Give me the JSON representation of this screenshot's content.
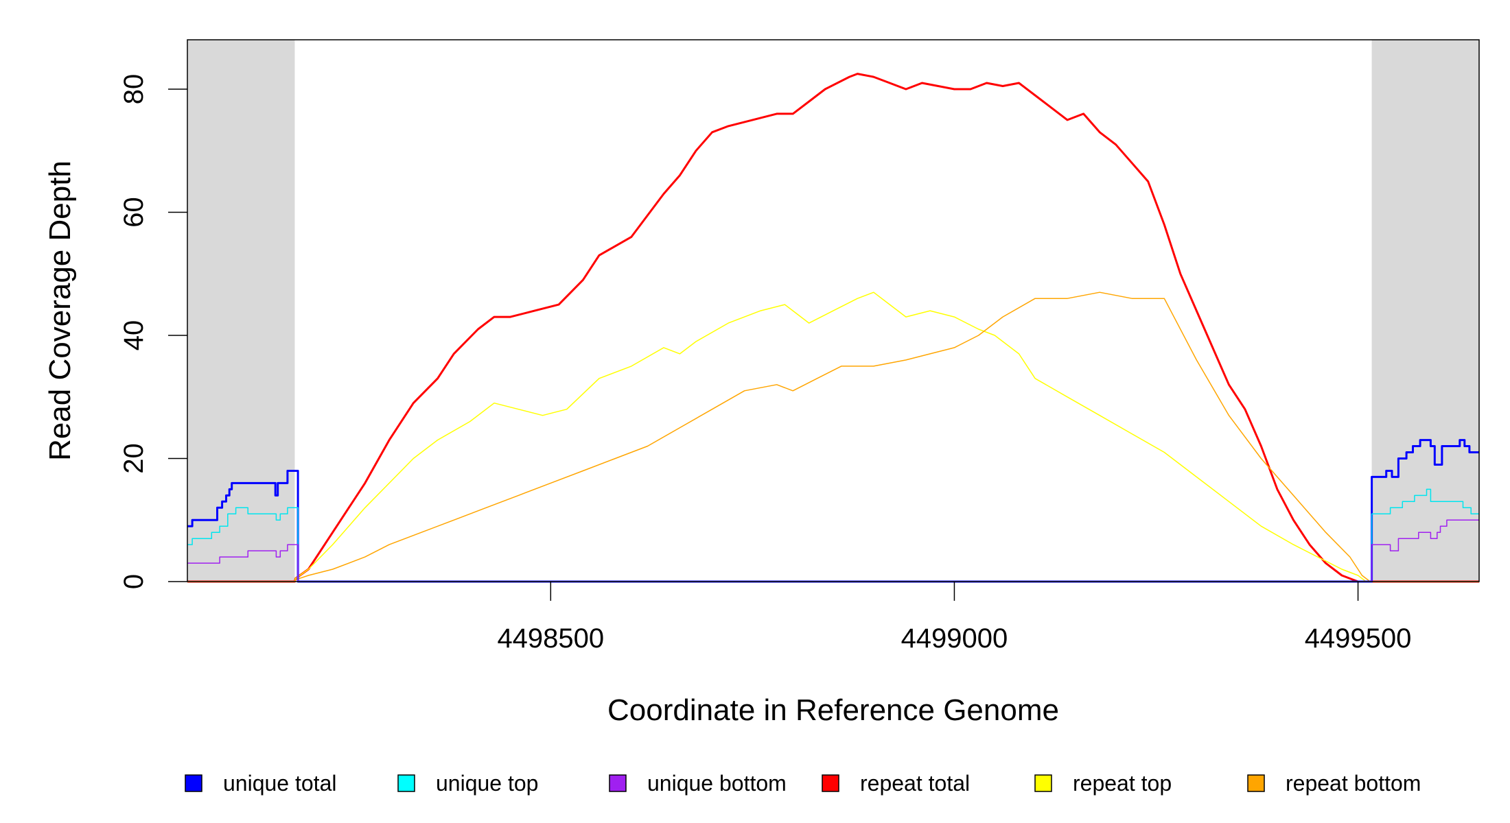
{
  "chart_data": {
    "type": "line",
    "title": "",
    "xlabel": "Coordinate in Reference Genome",
    "ylabel": "Read Coverage Depth",
    "xlim": [
      4498050,
      4499650
    ],
    "ylim": [
      0,
      88
    ],
    "x_ticks": [
      4498500,
      4499000,
      4499500
    ],
    "x_tick_labels": [
      "4498500",
      "4499000",
      "4499500"
    ],
    "y_ticks": [
      0,
      20,
      40,
      60,
      80
    ],
    "y_tick_labels": [
      "0",
      "20",
      "40",
      "60",
      "80"
    ],
    "grid": false,
    "shaded_regions": [
      {
        "x_start": 4498050,
        "x_end": 4498183,
        "color": "#d9d9d9"
      },
      {
        "x_start": 4499517,
        "x_end": 4499650,
        "color": "#d9d9d9"
      }
    ],
    "legend_position": "bottom",
    "series": [
      {
        "name": "unique total",
        "color": "#0000ff",
        "step": true,
        "x": [
          4498050,
          4498056,
          4498087,
          4498093,
          4498098,
          4498102,
          4498105,
          4498110,
          4498159,
          4498162,
          4498174,
          4498186,
          4498187,
          4499515,
          4499517,
          4499535,
          4499542,
          4499550,
          4499560,
          4499568,
          4499577,
          4499590,
          4499595,
          4499604,
          4499626,
          4499632,
          4499638,
          4499650
        ],
        "y": [
          9,
          10,
          12,
          13,
          14,
          15,
          16,
          16,
          14,
          16,
          18,
          18,
          0,
          0,
          17,
          18,
          17,
          20,
          21,
          22,
          23,
          22,
          19,
          22,
          23,
          22,
          21,
          21
        ]
      },
      {
        "name": "unique top",
        "color": "#00e5ee",
        "step": true,
        "x": [
          4498050,
          4498056,
          4498080,
          4498090,
          4498100,
          4498110,
          4498125,
          4498160,
          4498165,
          4498174,
          4498186,
          4498187,
          4499515,
          4499517,
          4499540,
          4499555,
          4499570,
          4499585,
          4499590,
          4499630,
          4499640,
          4499650
        ],
        "y": [
          6,
          7,
          8,
          9,
          11,
          12,
          11,
          10,
          11,
          12,
          12,
          0,
          0,
          11,
          12,
          13,
          14,
          15,
          13,
          12,
          11,
          11
        ],
        "width": 1.5
      },
      {
        "name": "unique bottom",
        "color": "#a020f0",
        "step": true,
        "x": [
          4498050,
          4498090,
          4498125,
          4498160,
          4498165,
          4498174,
          4498186,
          4498187,
          4499515,
          4499517,
          4499540,
          4499550,
          4499575,
          4499590,
          4499598,
          4499602,
          4499610,
          4499650
        ],
        "y": [
          3,
          4,
          5,
          4,
          5,
          6,
          6,
          0,
          0,
          6,
          5,
          7,
          8,
          7,
          8,
          9,
          10,
          10
        ],
        "width": 1.5
      },
      {
        "name": "repeat total",
        "color": "#ff0000",
        "x": [
          4498050,
          4498183,
          4498184,
          4498200,
          4498230,
          4498270,
          4498300,
          4498330,
          4498360,
          4498380,
          4498410,
          4498430,
          4498450,
          4498480,
          4498510,
          4498540,
          4498560,
          4498600,
          4498640,
          4498660,
          4498680,
          4498700,
          4498720,
          4498750,
          4498780,
          4498800,
          4498820,
          4498840,
          4498870,
          4498880,
          4498900,
          4498920,
          4498940,
          4498960,
          4498980,
          4499000,
          4499020,
          4499040,
          4499060,
          4499080,
          4499100,
          4499120,
          4499140,
          4499160,
          4499180,
          4499200,
          4499220,
          4499240,
          4499260,
          4499280,
          4499300,
          4499320,
          4499340,
          4499360,
          4499380,
          4499400,
          4499420,
          4499440,
          4499460,
          4499480,
          4499500,
          4499510,
          4499517,
          4499650
        ],
        "y": [
          0,
          0,
          0.5,
          2,
          8,
          16,
          23,
          29,
          33,
          37,
          41,
          43,
          43,
          44,
          45,
          49,
          53,
          56,
          63,
          66,
          70,
          73,
          74,
          75,
          76,
          76,
          78,
          80,
          82,
          82.5,
          82,
          81,
          80,
          81,
          80.5,
          80,
          80,
          81,
          80.5,
          81,
          79,
          77,
          75,
          76,
          73,
          71,
          68,
          65,
          58,
          50,
          44,
          38,
          32,
          28,
          22,
          15,
          10,
          6,
          3,
          1,
          0,
          0,
          0,
          0
        ],
        "width": 3
      },
      {
        "name": "repeat top",
        "color": "#ffff00",
        "x": [
          4498050,
          4498183,
          4498184,
          4498200,
          4498230,
          4498270,
          4498300,
          4498330,
          4498360,
          4498400,
          4498430,
          4498460,
          4498490,
          4498520,
          4498560,
          4498600,
          4498640,
          4498660,
          4498680,
          4498720,
          4498760,
          4498790,
          4498820,
          4498850,
          4498880,
          4498900,
          4498920,
          4498940,
          4498970,
          4499000,
          4499030,
          4499050,
          4499080,
          4499100,
          4499140,
          4499180,
          4499220,
          4499260,
          4499300,
          4499340,
          4499380,
          4499420,
          4499450,
          4499480,
          4499500,
          4499510,
          4499517,
          4499650
        ],
        "y": [
          0,
          0,
          0.5,
          2,
          6,
          12,
          16,
          20,
          23,
          26,
          29,
          28,
          27,
          28,
          33,
          35,
          38,
          37,
          39,
          42,
          44,
          45,
          42,
          44,
          46,
          47,
          45,
          43,
          44,
          43,
          41,
          40,
          37,
          33,
          30,
          27,
          24,
          21,
          17,
          13,
          9,
          6,
          4,
          2,
          1,
          0,
          0,
          0
        ],
        "width": 1.5
      },
      {
        "name": "repeat bottom",
        "color": "#ffa500",
        "x": [
          4498050,
          4498183,
          4498184,
          4498200,
          4498230,
          4498270,
          4498300,
          4498340,
          4498380,
          4498420,
          4498460,
          4498500,
          4498540,
          4498580,
          4498620,
          4498660,
          4498700,
          4498740,
          4498780,
          4498800,
          4498830,
          4498860,
          4498900,
          4498940,
          4498970,
          4499000,
          4499030,
          4499060,
          4499100,
          4499140,
          4499180,
          4499220,
          4499260,
          4499300,
          4499340,
          4499380,
          4499420,
          4499460,
          4499490,
          4499505,
          4499515,
          4499517,
          4499650
        ],
        "y": [
          0,
          0,
          0.3,
          1,
          2,
          4,
          6,
          8,
          10,
          12,
          14,
          16,
          18,
          20,
          22,
          25,
          28,
          31,
          32,
          31,
          33,
          35,
          35,
          36,
          37,
          38,
          40,
          43,
          46,
          46,
          47,
          46,
          46,
          36,
          27,
          20,
          14,
          8,
          4,
          1,
          0,
          0,
          0
        ],
        "width": 1.5
      }
    ],
    "legend": [
      {
        "label": "unique total",
        "color": "#0000ff"
      },
      {
        "label": "unique top",
        "color": "#00ffff"
      },
      {
        "label": "unique bottom",
        "color": "#a020f0"
      },
      {
        "label": "repeat total",
        "color": "#ff0000"
      },
      {
        "label": "repeat top",
        "color": "#ffff00"
      },
      {
        "label": "repeat bottom",
        "color": "#ffa500"
      }
    ]
  }
}
